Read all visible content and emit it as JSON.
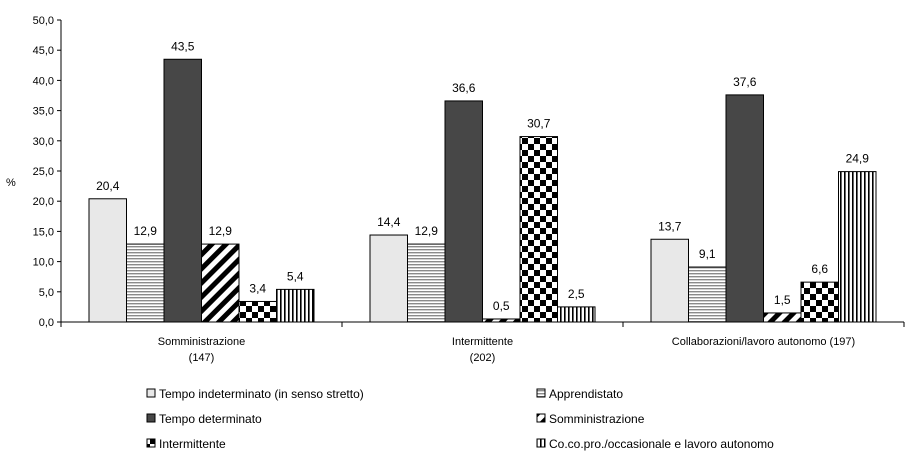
{
  "chart_data": {
    "type": "bar",
    "ylabel": "%",
    "ylim": [
      0,
      50
    ],
    "yticks": [
      "0,0",
      "5,0",
      "10,0",
      "15,0",
      "20,0",
      "25,0",
      "30,0",
      "35,0",
      "40,0",
      "45,0",
      "50,0"
    ],
    "categories": [
      [
        "Somministrazione",
        "(147)"
      ],
      [
        "Intermittente",
        "(202)"
      ],
      [
        "Collaborazioni/lavoro autonomo (197)"
      ]
    ],
    "series": [
      {
        "name": "Tempo indeterminato (in senso stretto)",
        "values": [
          20.4,
          14.4,
          13.7
        ],
        "labels": [
          "20,4",
          "14,4",
          "13,7"
        ],
        "color": "#e8e8e8",
        "pattern": "solid"
      },
      {
        "name": "Apprendistato",
        "values": [
          12.9,
          12.9,
          9.1
        ],
        "labels": [
          "12,9",
          "12,9",
          "9,1"
        ],
        "color": "#a0a0a0",
        "pattern": "hstripes"
      },
      {
        "name": "Tempo determinato",
        "values": [
          43.5,
          36.6,
          37.6
        ],
        "labels": [
          "43,5",
          "36,6",
          "37,6"
        ],
        "color": "#474747",
        "pattern": "solid"
      },
      {
        "name": "Somministrazione",
        "values": [
          12.9,
          0.5,
          1.5
        ],
        "labels": [
          "12,9",
          "0,5",
          "1,5"
        ],
        "color": "#000000",
        "pattern": "diagonal"
      },
      {
        "name": "Intermittente",
        "values": [
          3.4,
          30.7,
          6.6
        ],
        "labels": [
          "3,4",
          "30,7",
          "6,6"
        ],
        "color": "#000000",
        "pattern": "checker"
      },
      {
        "name": "Co.co.pro./occasionale e lavoro autonomo",
        "values": [
          5.4,
          2.5,
          24.9
        ],
        "labels": [
          "5,4",
          "2,5",
          "24,9"
        ],
        "color": "#000000",
        "pattern": "vstripes"
      }
    ],
    "legend_position": "bottom",
    "grid": false
  }
}
